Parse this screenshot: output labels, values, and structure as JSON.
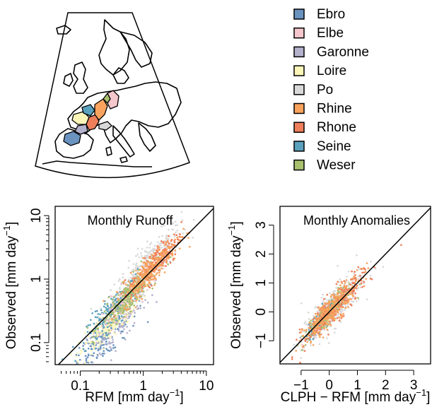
{
  "map": {
    "basins": [
      {
        "name": "Ebro",
        "color": "#6a93c0"
      },
      {
        "name": "Elbe",
        "color": "#f4c7cc"
      },
      {
        "name": "Garonne",
        "color": "#b3b1cc"
      },
      {
        "name": "Loire",
        "color": "#fbf5b8"
      },
      {
        "name": "Po",
        "color": "#d9d9d9"
      },
      {
        "name": "Rhine",
        "color": "#f9a35e"
      },
      {
        "name": "Rhone",
        "color": "#ef7f5b"
      },
      {
        "name": "Seine",
        "color": "#5aa1be"
      },
      {
        "name": "Weser",
        "color": "#a9c16e"
      }
    ]
  },
  "chart_data": [
    {
      "type": "scatter",
      "title": "Monthly Runoff",
      "xlabel": "RFM  [mm  day",
      "xlabel_sup": "−1",
      "xlabel_end": "]",
      "ylabel": "Observed  [mm  day",
      "ylabel_sup": "−1",
      "ylabel_end": "]",
      "x_scale": "log",
      "y_scale": "log",
      "xlim": [
        0.04,
        13
      ],
      "ylim": [
        0.045,
        14
      ],
      "xticks": [
        {
          "v": 0.1,
          "label": "0.1"
        },
        {
          "v": 1,
          "label": "1"
        },
        {
          "v": 10,
          "label": "10"
        }
      ],
      "yticks": [
        {
          "v": 0.1,
          "label": "0.1"
        },
        {
          "v": 1,
          "label": "1"
        },
        {
          "v": 10,
          "label": "10"
        }
      ],
      "reference_line": "1:1",
      "series_note": "dense clouds of points, one colour per basin, scattered around the 1:1 line",
      "clusters": [
        {
          "basin": "Ebro",
          "center": [
            0.25,
            0.12
          ],
          "spread": [
            0.3,
            0.28
          ],
          "n": 200
        },
        {
          "basin": "Garonne",
          "center": [
            0.35,
            0.18
          ],
          "spread": [
            0.28,
            0.28
          ],
          "n": 170
        },
        {
          "basin": "Loire",
          "center": [
            0.3,
            0.2
          ],
          "spread": [
            0.24,
            0.22
          ],
          "n": 240
        },
        {
          "basin": "Seine",
          "center": [
            0.35,
            0.35
          ],
          "spread": [
            0.22,
            0.2
          ],
          "n": 200
        },
        {
          "basin": "Weser",
          "center": [
            0.6,
            0.55
          ],
          "spread": [
            0.22,
            0.2
          ],
          "n": 260
        },
        {
          "basin": "Elbe",
          "center": [
            0.55,
            0.5
          ],
          "spread": [
            0.22,
            0.2
          ],
          "n": 160
        },
        {
          "basin": "Po",
          "center": [
            1.2,
            1.8
          ],
          "spread": [
            0.26,
            0.26
          ],
          "n": 300
        },
        {
          "basin": "Rhine",
          "center": [
            1.3,
            1.4
          ],
          "spread": [
            0.22,
            0.2
          ],
          "n": 260
        },
        {
          "basin": "Rhone",
          "center": [
            1.6,
            1.8
          ],
          "spread": [
            0.2,
            0.2
          ],
          "n": 220
        }
      ]
    },
    {
      "type": "scatter",
      "title": "Monthly Anomalies",
      "xlabel": "CLPH − RFM  [mm  day",
      "xlabel_sup": "−1",
      "xlabel_end": "]",
      "ylabel": "Observed  [mm  day",
      "ylabel_sup": "−1",
      "ylabel_end": "]",
      "x_scale": "linear",
      "y_scale": "linear",
      "xlim": [
        -1.75,
        3.6
      ],
      "ylim": [
        -1.8,
        3.65
      ],
      "xticks": [
        {
          "v": -1,
          "label": "−1"
        },
        {
          "v": 0,
          "label": "0"
        },
        {
          "v": 1,
          "label": "1"
        },
        {
          "v": 2,
          "label": "2"
        },
        {
          "v": 3,
          "label": "3"
        }
      ],
      "yticks": [
        {
          "v": -1,
          "label": "−1"
        },
        {
          "v": 0,
          "label": "0"
        },
        {
          "v": 1,
          "label": "1"
        },
        {
          "v": 2,
          "label": "2"
        },
        {
          "v": 3,
          "label": "3"
        }
      ],
      "reference_line": "1:1",
      "series_note": "dense clouds of points, one colour per basin, scattered around the 1:1 line",
      "clusters": [
        {
          "basin": "Po",
          "center": [
            0.1,
            0.1
          ],
          "spread": [
            0.55,
            0.8
          ],
          "n": 300
        },
        {
          "basin": "Rhine",
          "center": [
            0.1,
            0.1
          ],
          "spread": [
            0.5,
            0.55
          ],
          "n": 260
        },
        {
          "basin": "Rhone",
          "center": [
            0.2,
            0.2
          ],
          "spread": [
            0.55,
            0.6
          ],
          "n": 260
        },
        {
          "basin": "Seine",
          "center": [
            -0.1,
            -0.1
          ],
          "spread": [
            0.35,
            0.35
          ],
          "n": 180
        },
        {
          "basin": "Weser",
          "center": [
            0.0,
            0.0
          ],
          "spread": [
            0.4,
            0.4
          ],
          "n": 220
        },
        {
          "basin": "Elbe",
          "center": [
            0.0,
            0.0
          ],
          "spread": [
            0.35,
            0.35
          ],
          "n": 140
        },
        {
          "basin": "Ebro",
          "center": [
            -0.1,
            -0.1
          ],
          "spread": [
            0.3,
            0.3
          ],
          "n": 140
        },
        {
          "basin": "Loire",
          "center": [
            0.0,
            0.0
          ],
          "spread": [
            0.35,
            0.35
          ],
          "n": 160
        },
        {
          "basin": "Garonne",
          "center": [
            0.0,
            0.0
          ],
          "spread": [
            0.35,
            0.35
          ],
          "n": 140
        }
      ]
    }
  ]
}
